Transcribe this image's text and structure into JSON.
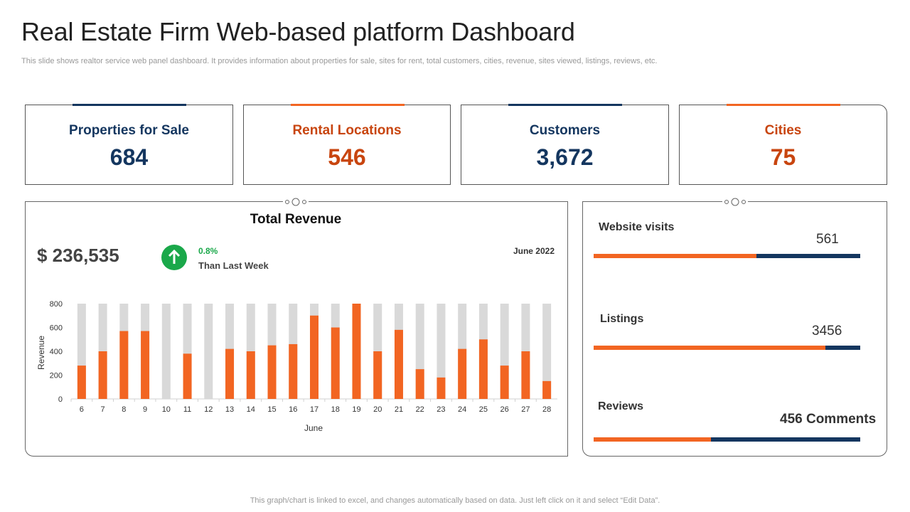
{
  "header": {
    "title": "Real Estate Firm Web-based platform Dashboard",
    "subtitle": "This slide shows realtor service web panel dashboard. It provides information about properties for sale, sites for rent, total customers, cities, revenue, sites viewed, listings, reviews, etc."
  },
  "kpis": [
    {
      "label": "Properties for Sale",
      "value": "684",
      "accent": "#14365f"
    },
    {
      "label": "Rental Locations",
      "value": "546",
      "accent": "#f26522"
    },
    {
      "label": "Customers",
      "value": "3,672",
      "accent": "#14365f"
    },
    {
      "label": "Cities",
      "value": "75",
      "accent": "#f26522"
    }
  ],
  "revenue": {
    "title": "Total Revenue",
    "amount": "$ 236,535",
    "change_pct": "0.8%",
    "change_text": "Than Last Week",
    "period": "June 2022"
  },
  "chart_data": {
    "type": "bar",
    "categories": [
      "6",
      "7",
      "8",
      "9",
      "10",
      "11",
      "12",
      "13",
      "14",
      "15",
      "16",
      "17",
      "18",
      "19",
      "20",
      "21",
      "22",
      "23",
      "24",
      "25",
      "26",
      "27",
      "28"
    ],
    "series": [
      {
        "name": "Revenue",
        "color": "#f26522",
        "values": [
          280,
          400,
          570,
          570,
          0,
          380,
          0,
          420,
          400,
          450,
          460,
          700,
          600,
          800,
          400,
          580,
          250,
          180,
          420,
          500,
          280,
          400,
          150
        ]
      },
      {
        "name": "Background",
        "color": "#d9d9d9",
        "values": [
          800,
          800,
          800,
          800,
          800,
          800,
          800,
          800,
          800,
          800,
          800,
          800,
          800,
          800,
          800,
          800,
          800,
          800,
          800,
          800,
          800,
          800,
          800
        ]
      }
    ],
    "ylim": [
      0,
      800
    ],
    "yticks": [
      0,
      200,
      400,
      600,
      800
    ],
    "xlabel": "June",
    "ylabel": "Revenue"
  },
  "metrics": [
    {
      "label": "Website visits",
      "value": "561",
      "fill_fraction": 0.61
    },
    {
      "label": "Listings",
      "value": "3456",
      "fill_fraction": 0.87
    },
    {
      "label": "Reviews",
      "value": "456 Comments",
      "fill_fraction": 0.44
    }
  ],
  "colors": {
    "navy": "#14365f",
    "orange": "#f26522",
    "green": "#1aa84a",
    "gray_bar": "#d9d9d9"
  },
  "footer": "This graph/chart is linked to excel, and changes automatically based on data. Just left click on it and select “Edit Data”."
}
